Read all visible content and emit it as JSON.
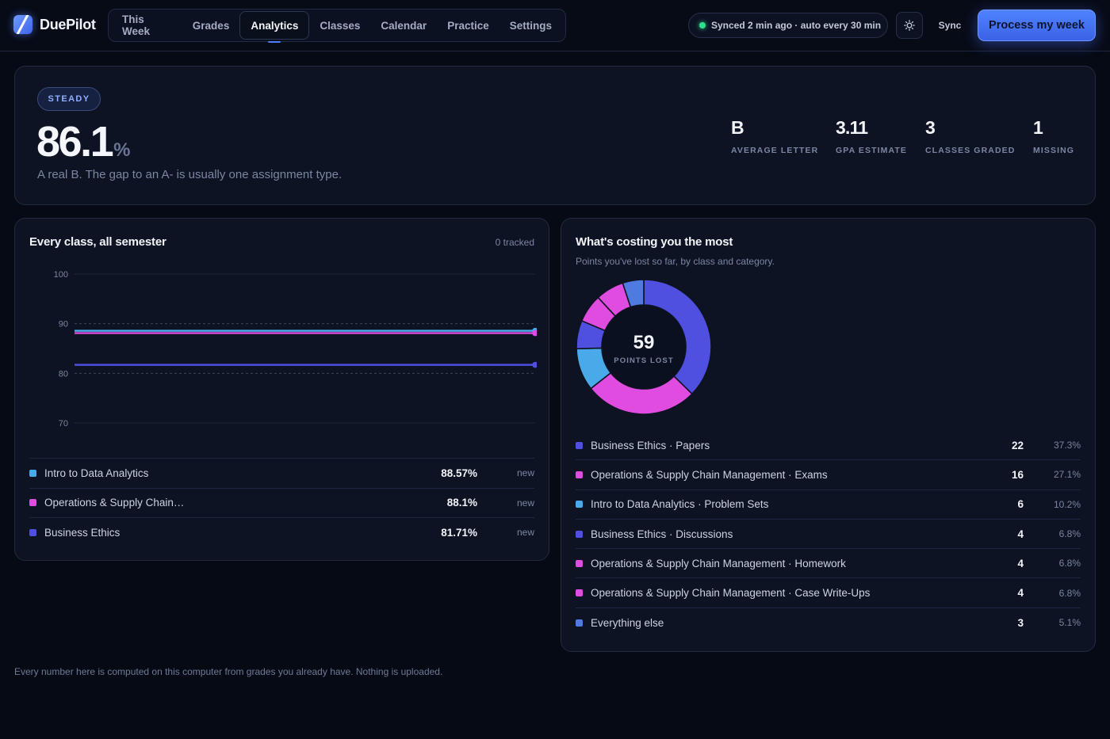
{
  "app": {
    "name": "DuePilot"
  },
  "nav": {
    "items": [
      {
        "label": "This Week",
        "active": false
      },
      {
        "label": "Grades",
        "active": false
      },
      {
        "label": "Analytics",
        "active": true
      },
      {
        "label": "Classes",
        "active": false
      },
      {
        "label": "Calendar",
        "active": false
      },
      {
        "label": "Practice",
        "active": false
      },
      {
        "label": "Settings",
        "active": false
      }
    ]
  },
  "header": {
    "sync_status": "Synced 2 min ago · auto every 30 min",
    "theme_icon": "sun-icon",
    "sync_label": "Sync",
    "process_label": "Process my week"
  },
  "summary": {
    "badge": "STEADY",
    "percent": "86.1",
    "percent_unit": "%",
    "subtitle": "A real B. The gap to an A- is usually one assignment type.",
    "stats": [
      {
        "value": "B",
        "label": "AVERAGE LETTER"
      },
      {
        "value": "3.11",
        "label": "GPA ESTIMATE"
      },
      {
        "value": "3",
        "label": "CLASSES GRADED"
      },
      {
        "value": "1",
        "label": "MISSING"
      }
    ]
  },
  "semester_card": {
    "title": "Every class, all semester",
    "meta": "0 tracked",
    "classes": [
      {
        "name": "Intro to Data Analytics",
        "percent": "88.57%",
        "tag": "new",
        "color": "#4aa9e8"
      },
      {
        "name": "Operations & Supply Chain…",
        "percent": "88.1%",
        "tag": "new",
        "color": "#e04be0"
      },
      {
        "name": "Business Ethics",
        "percent": "81.71%",
        "tag": "new",
        "color": "#4f4fe0"
      }
    ]
  },
  "chart_data": [
    {
      "type": "line",
      "title": "Every class, all semester",
      "xlabel": "",
      "ylabel": "",
      "ylim": [
        70,
        100
      ],
      "yticks": [
        70,
        80,
        90,
        100
      ],
      "reference_lines": [
        80,
        90
      ],
      "grid": true,
      "series": [
        {
          "name": "Intro to Data Analytics",
          "color": "#4aa9e8",
          "values": [
            88.57,
            88.57
          ]
        },
        {
          "name": "Operations & Supply Chain Management",
          "color": "#e04be0",
          "values": [
            88.1,
            88.1
          ]
        },
        {
          "name": "Business Ethics",
          "color": "#4f4fe0",
          "values": [
            81.71,
            81.71
          ]
        }
      ]
    },
    {
      "type": "pie",
      "title": "What's costing you the most",
      "center_value": "59",
      "center_label": "POINTS LOST",
      "categories": [
        "Business Ethics · Papers",
        "Operations & Supply Chain Management · Exams",
        "Intro to Data Analytics · Problem Sets",
        "Business Ethics · Discussions",
        "Operations & Supply Chain Management · Homework",
        "Operations & Supply Chain Management · Case Write-Ups",
        "Everything else"
      ],
      "values": [
        22,
        16,
        6,
        4,
        4,
        4,
        3
      ],
      "colors": [
        "#4f4fe0",
        "#e04be0",
        "#4aa9e8",
        "#4f4fe0",
        "#e04be0",
        "#e04be0",
        "#4f7be0"
      ]
    }
  ],
  "costs_card": {
    "title": "What's costing you the most",
    "subtitle": "Points you've lost so far, by class and category.",
    "center_value": "59",
    "center_label": "POINTS LOST",
    "rows": [
      {
        "class": "Business Ethics",
        "category": "Papers",
        "points": "22",
        "percent": "37.3%",
        "color": "#4f4fe0"
      },
      {
        "class": "Operations & Supply Chain Management",
        "category": "Exams",
        "points": "16",
        "percent": "27.1%",
        "color": "#e04be0"
      },
      {
        "class": "Intro to Data Analytics",
        "category": "Problem Sets",
        "points": "6",
        "percent": "10.2%",
        "color": "#4aa9e8"
      },
      {
        "class": "Business Ethics",
        "category": "Discussions",
        "points": "4",
        "percent": "6.8%",
        "color": "#4f4fe0"
      },
      {
        "class": "Operations & Supply Chain Management",
        "category": "Homework",
        "points": "4",
        "percent": "6.8%",
        "color": "#e04be0"
      },
      {
        "class": "Operations & Supply Chain Management",
        "category": "Case Write-Ups",
        "points": "4",
        "percent": "6.8%",
        "color": "#e04be0"
      },
      {
        "class": "Everything else",
        "category": "",
        "points": "3",
        "percent": "5.1%",
        "color": "#4f7be0"
      }
    ]
  },
  "footer": {
    "note": "Every number here is computed on this computer from grades you already have. Nothing is uploaded."
  }
}
